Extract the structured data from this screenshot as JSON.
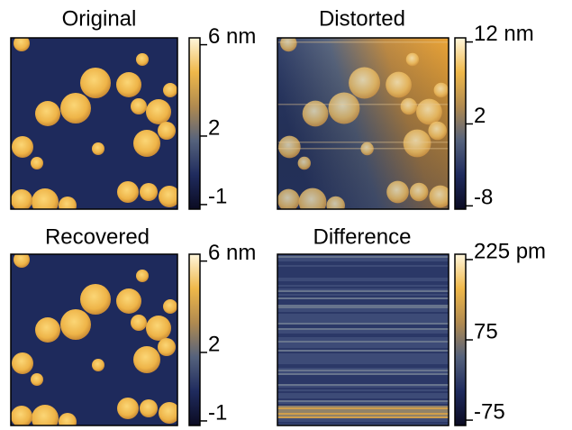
{
  "chart_data": [
    {
      "type": "image",
      "title": "Original",
      "colormap": [
        "#0b0b22",
        "#1f2b5e",
        "#55627c",
        "#b08a50",
        "#efb84a",
        "#fff6dc"
      ],
      "clim": [
        -1.2,
        6.3
      ],
      "cticks": [
        {
          "value": 6,
          "label": "6 nm"
        },
        2,
        -1
      ]
    },
    {
      "type": "image",
      "title": "Distorted",
      "colormap": [
        "#0b0b22",
        "#1f2b5e",
        "#55627c",
        "#b08a50",
        "#efb84a",
        "#fff6dc"
      ],
      "clim": [
        -8.4,
        12.5
      ],
      "cticks": [
        {
          "value": 12,
          "label": "12 nm"
        },
        2,
        -8
      ]
    },
    {
      "type": "image",
      "title": "Recovered",
      "colormap": [
        "#0b0b22",
        "#1f2b5e",
        "#55627c",
        "#b08a50",
        "#efb84a",
        "#fff6dc"
      ],
      "clim": [
        -1.2,
        6.3
      ],
      "cticks": [
        {
          "value": 6,
          "label": "6 nm"
        },
        2,
        -1
      ]
    },
    {
      "type": "image",
      "title": "Difference",
      "colormap": [
        "#0b0b22",
        "#1f2b5e",
        "#55627c",
        "#b08a50",
        "#efb84a",
        "#fff6dc"
      ],
      "clim": [
        -85,
        235
      ],
      "cticks": [
        {
          "value": 225,
          "label": "225 pm"
        },
        75,
        -75
      ]
    }
  ]
}
